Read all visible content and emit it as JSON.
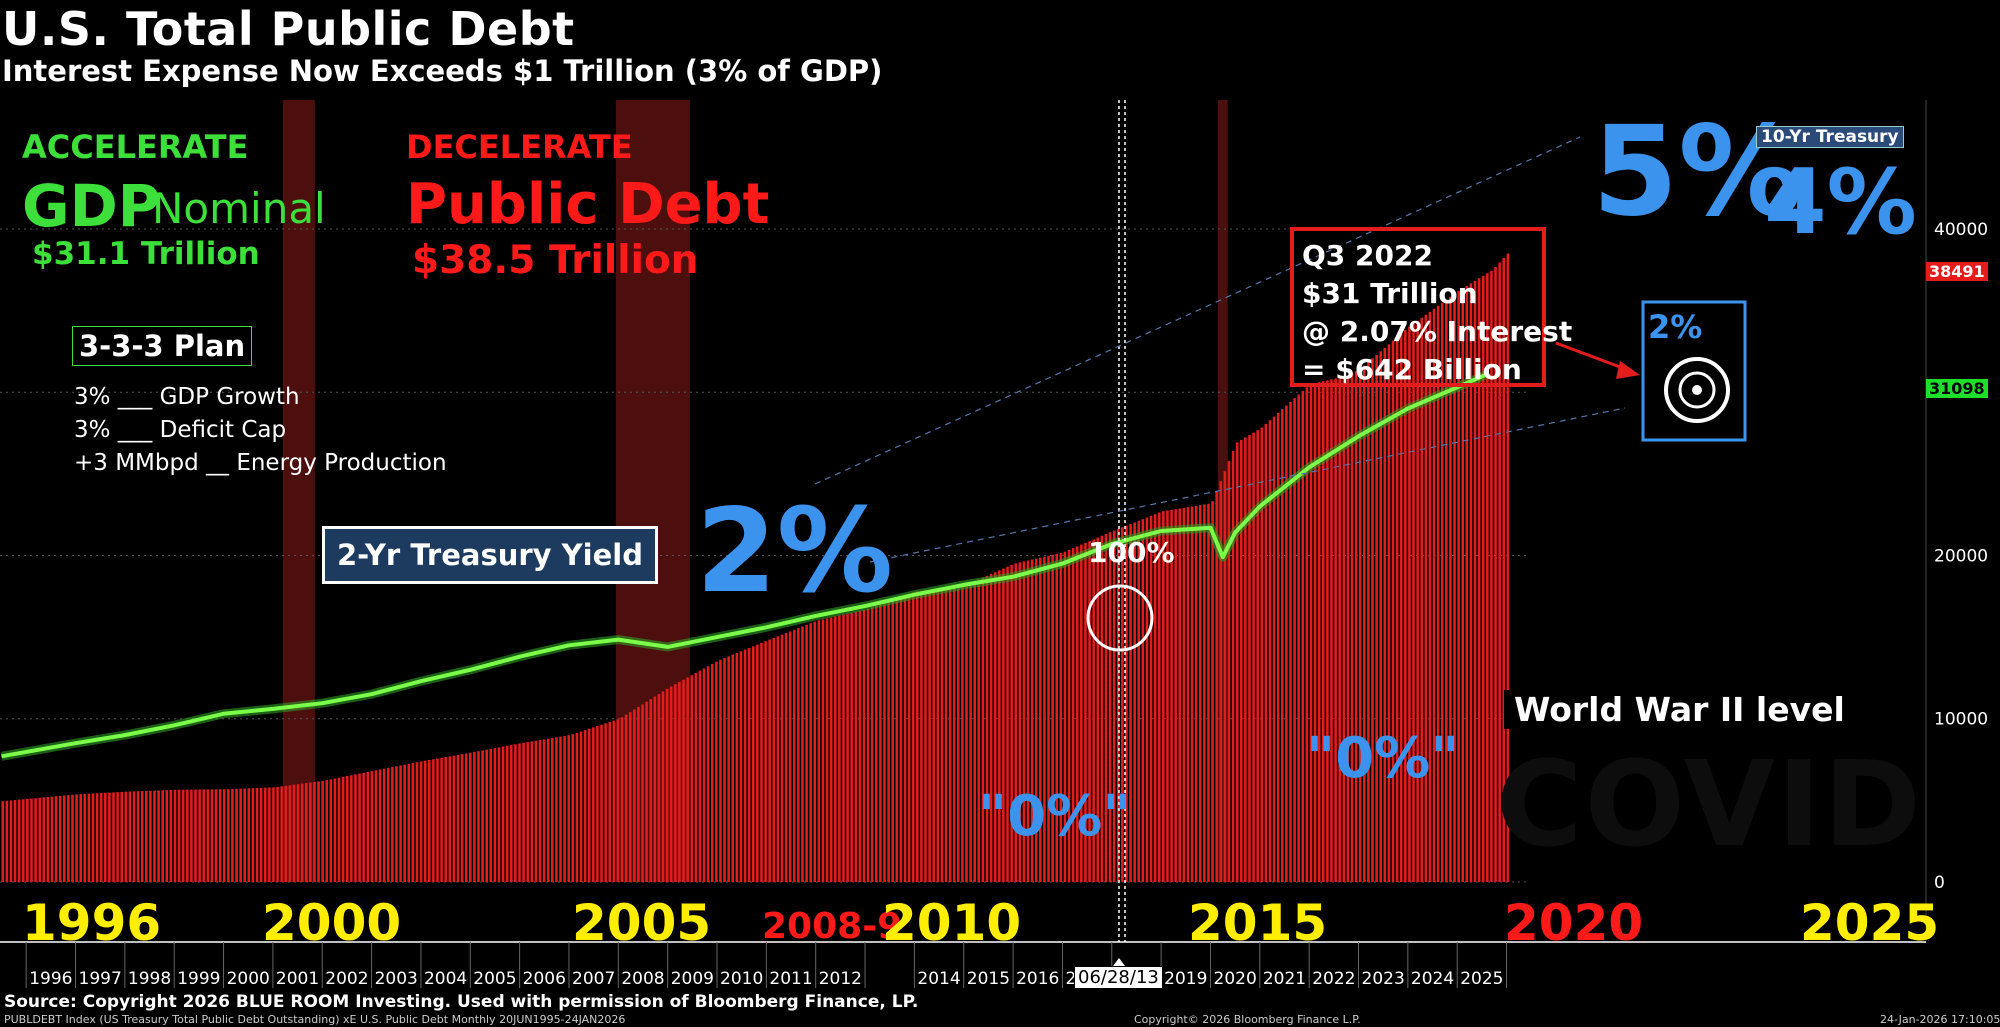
{
  "title": "U.S. Total Public Debt",
  "subtitle": "Interest Expense Now Exceeds $1 Trillion (3% of GDP)",
  "colors": {
    "debt_bars": "#e31c1c",
    "gdp_line": "#7cff4a",
    "accent_blue": "#3b93ee",
    "recession": "#5a1010"
  },
  "left_panel": {
    "accelerate": "ACCELERATE",
    "gdp_big": "GDP",
    "gdp_nominal": "Nominal",
    "gdp_value": "$31.1 Trillion",
    "decelerate": "DECELERATE",
    "debt_big": "Public Debt",
    "debt_value": "$38.5 Trillion"
  },
  "plan": {
    "title": "3-3-3 Plan",
    "lines": [
      "3% ___ GDP Growth",
      "3% ___ Deficit Cap",
      "+3 MMbpd __ Energy Production"
    ]
  },
  "annotations": {
    "two_yr": "2-Yr Treasury Yield",
    "two_pct": "2%",
    "five_pct": "5%",
    "four_pct": "4%",
    "ten_yr": "10-Yr Treasury",
    "q3_lines": [
      "Q3 2022",
      "$31 Trillion",
      "@ 2.07% Interest",
      "= $642 Billion"
    ],
    "two_pct_small": "2%",
    "zero_a": "\"0%\"",
    "zero_b": "\"0%\"",
    "ww2": "World War II level",
    "covid": "COVID",
    "hundred": "100%",
    "date_tag": "06/28/13"
  },
  "big_years": [
    {
      "label": "1996",
      "color": "yellow"
    },
    {
      "label": "2000",
      "color": "yellow"
    },
    {
      "label": "2005",
      "color": "yellow"
    },
    {
      "label": "2008-9",
      "color": "red"
    },
    {
      "label": "2010",
      "color": "yellow"
    },
    {
      "label": "2015",
      "color": "yellow"
    },
    {
      "label": "2020",
      "color": "red"
    },
    {
      "label": "2025",
      "color": "yellow"
    }
  ],
  "badges": {
    "debt_last": "38491",
    "gdp_last": "31098"
  },
  "footer": {
    "source": "Source: Copyright 2026 BLUE ROOM Investing. Used with permission of Bloomberg Finance, LP.",
    "left": "PUBLDEBT Index (US Treasury Total Public Debt Outstanding) xE U.S. Public Debt Monthly 20JUN1995-24JAN2026",
    "mid": "Copyright© 2026 Bloomberg Finance L.P.",
    "right": "24-Jan-2026 17:10:05"
  },
  "chart_data": {
    "type": "bar",
    "title": "U.S. Total Public Debt",
    "y_ticks": [
      0,
      10000,
      20000,
      30000,
      40000
    ],
    "ylim": [
      0,
      49000
    ],
    "x_ticks": [
      "1996",
      "1997",
      "1998",
      "1999",
      "2000",
      "2001",
      "2002",
      "2003",
      "2004",
      "2005",
      "2006",
      "2007",
      "2008",
      "2009",
      "2010",
      "2011",
      "2012",
      "2014",
      "2015",
      "2016",
      "2017",
      "2018",
      "2019",
      "2020",
      "2021",
      "2022",
      "2023",
      "2024",
      "2025"
    ],
    "xlim": [
      1995.47,
      2026.07
    ],
    "recessions": [
      [
        2001.2,
        2001.85
      ],
      [
        2007.95,
        2009.45
      ],
      [
        2020.15,
        2020.35
      ]
    ],
    "series": [
      {
        "name": "Total Public Debt",
        "kind": "bar",
        "points": [
          [
            1995.5,
            4950
          ],
          [
            1997,
            5370
          ],
          [
            1998,
            5530
          ],
          [
            1999,
            5650
          ],
          [
            2000,
            5680
          ],
          [
            2001,
            5800
          ],
          [
            2002,
            6200
          ],
          [
            2003,
            6800
          ],
          [
            2004,
            7400
          ],
          [
            2005,
            7930
          ],
          [
            2006,
            8500
          ],
          [
            2007,
            9000
          ],
          [
            2008,
            10000
          ],
          [
            2009,
            11900
          ],
          [
            2010,
            13560
          ],
          [
            2011,
            14800
          ],
          [
            2012,
            16000
          ],
          [
            2013,
            16700
          ],
          [
            2014,
            17800
          ],
          [
            2015,
            18150
          ],
          [
            2016,
            19500
          ],
          [
            2017,
            20200
          ],
          [
            2018,
            21500
          ],
          [
            2019,
            22700
          ],
          [
            2020,
            23200
          ],
          [
            2020.5,
            26900
          ],
          [
            2021,
            27800
          ],
          [
            2022,
            30500
          ],
          [
            2022.75,
            31000
          ],
          [
            2023,
            31400
          ],
          [
            2024,
            34000
          ],
          [
            2025,
            36200
          ],
          [
            2025.7,
            37500
          ],
          [
            2026,
            38491
          ]
        ]
      },
      {
        "name": "GDP Nominal",
        "kind": "line",
        "points": [
          [
            1995.5,
            7700
          ],
          [
            1997,
            8500
          ],
          [
            1998,
            9000
          ],
          [
            1999,
            9600
          ],
          [
            2000,
            10300
          ],
          [
            2001,
            10600
          ],
          [
            2002,
            10950
          ],
          [
            2003,
            11500
          ],
          [
            2004,
            12300
          ],
          [
            2005,
            13000
          ],
          [
            2006,
            13800
          ],
          [
            2007,
            14500
          ],
          [
            2008,
            14850
          ],
          [
            2009,
            14400
          ],
          [
            2010,
            15000
          ],
          [
            2011,
            15600
          ],
          [
            2012,
            16300
          ],
          [
            2013,
            16900
          ],
          [
            2014,
            17600
          ],
          [
            2015,
            18200
          ],
          [
            2016,
            18700
          ],
          [
            2017,
            19500
          ],
          [
            2018,
            20700
          ],
          [
            2019,
            21500
          ],
          [
            2020,
            21700
          ],
          [
            2020.25,
            19900
          ],
          [
            2020.5,
            21400
          ],
          [
            2021,
            23000
          ],
          [
            2022,
            25400
          ],
          [
            2023,
            27300
          ],
          [
            2024,
            29000
          ],
          [
            2025,
            30300
          ],
          [
            2025.6,
            31098
          ]
        ]
      }
    ]
  }
}
